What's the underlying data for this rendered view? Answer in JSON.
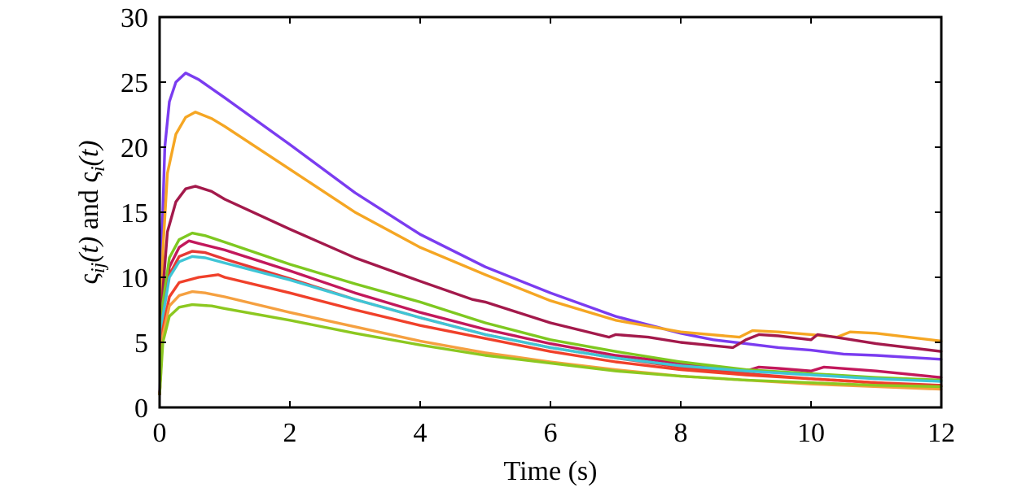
{
  "chart_data": {
    "type": "line",
    "xlabel": "Time (s)",
    "ylabel_parts": {
      "a": "ς",
      "a_sub": "ij",
      "a_arg": "(t)",
      "and": " and ",
      "b": "ς",
      "b_sub": "i",
      "b_arg": "(t)"
    },
    "xlim": [
      0,
      12
    ],
    "ylim": [
      0,
      30
    ],
    "xticks": [
      0,
      2,
      4,
      6,
      8,
      10,
      12
    ],
    "yticks": [
      0,
      5,
      10,
      15,
      20,
      25,
      30
    ],
    "grid": false,
    "series": [
      {
        "color": "#7a3cf0",
        "points": [
          [
            0,
            1
          ],
          [
            0.03,
            12
          ],
          [
            0.08,
            20
          ],
          [
            0.15,
            23.5
          ],
          [
            0.25,
            25
          ],
          [
            0.4,
            25.7
          ],
          [
            0.6,
            25.2
          ],
          [
            1,
            23.8
          ],
          [
            2,
            20.2
          ],
          [
            3,
            16.5
          ],
          [
            4,
            13.3
          ],
          [
            5,
            10.8
          ],
          [
            6,
            8.8
          ],
          [
            7,
            7
          ],
          [
            8,
            5.7
          ],
          [
            8.5,
            5.2
          ],
          [
            9,
            4.9
          ],
          [
            9.5,
            4.6
          ],
          [
            10,
            4.4
          ],
          [
            10.5,
            4.1
          ],
          [
            11,
            4
          ],
          [
            12,
            3.7
          ]
        ]
      },
      {
        "color": "#f5a623",
        "points": [
          [
            0,
            1
          ],
          [
            0.05,
            12
          ],
          [
            0.12,
            18
          ],
          [
            0.25,
            21
          ],
          [
            0.4,
            22.3
          ],
          [
            0.55,
            22.7
          ],
          [
            0.8,
            22.2
          ],
          [
            1,
            21.6
          ],
          [
            2,
            18.3
          ],
          [
            3,
            15
          ],
          [
            4,
            12.3
          ],
          [
            5,
            10.2
          ],
          [
            6,
            8.2
          ],
          [
            7,
            6.7
          ],
          [
            8,
            5.8
          ],
          [
            8.9,
            5.4
          ],
          [
            9.1,
            5.9
          ],
          [
            9.5,
            5.8
          ],
          [
            10,
            5.6
          ],
          [
            10.4,
            5.4
          ],
          [
            10.6,
            5.8
          ],
          [
            11,
            5.7
          ],
          [
            12,
            5.1
          ]
        ]
      },
      {
        "color": "#a3194b",
        "points": [
          [
            0,
            1
          ],
          [
            0.05,
            9
          ],
          [
            0.12,
            13.5
          ],
          [
            0.25,
            15.8
          ],
          [
            0.4,
            16.8
          ],
          [
            0.55,
            17
          ],
          [
            0.8,
            16.6
          ],
          [
            1,
            16
          ],
          [
            2,
            13.7
          ],
          [
            3,
            11.5
          ],
          [
            4,
            9.7
          ],
          [
            4.8,
            8.3
          ],
          [
            5,
            8.1
          ],
          [
            6,
            6.5
          ],
          [
            6.9,
            5.4
          ],
          [
            7,
            5.6
          ],
          [
            7.5,
            5.4
          ],
          [
            8,
            5
          ],
          [
            8.8,
            4.6
          ],
          [
            9,
            5.2
          ],
          [
            9.2,
            5.6
          ],
          [
            9.5,
            5.5
          ],
          [
            10,
            5.2
          ],
          [
            10.1,
            5.6
          ],
          [
            10.5,
            5.3
          ],
          [
            11,
            4.9
          ],
          [
            12,
            4.3
          ]
        ]
      },
      {
        "color": "#c2185b",
        "points": [
          [
            0,
            1
          ],
          [
            0.05,
            7.5
          ],
          [
            0.15,
            10.8
          ],
          [
            0.3,
            12.3
          ],
          [
            0.45,
            12.8
          ],
          [
            0.6,
            12.6
          ],
          [
            1,
            12.1
          ],
          [
            2,
            10.5
          ],
          [
            3,
            8.8
          ],
          [
            4,
            7.3
          ],
          [
            5,
            6
          ],
          [
            6,
            4.9
          ],
          [
            7,
            4
          ],
          [
            8,
            3.4
          ],
          [
            9,
            2.8
          ],
          [
            9.2,
            3.1
          ],
          [
            9.5,
            3
          ],
          [
            10,
            2.8
          ],
          [
            10.2,
            3.1
          ],
          [
            11,
            2.8
          ],
          [
            12,
            2.3
          ]
        ]
      },
      {
        "color": "#7ec820",
        "points": [
          [
            0,
            1
          ],
          [
            0.05,
            8
          ],
          [
            0.15,
            11.5
          ],
          [
            0.3,
            12.9
          ],
          [
            0.5,
            13.4
          ],
          [
            0.7,
            13.2
          ],
          [
            1,
            12.7
          ],
          [
            2,
            11
          ],
          [
            3,
            9.5
          ],
          [
            4,
            8.1
          ],
          [
            5,
            6.5
          ],
          [
            6,
            5.2
          ],
          [
            7,
            4.3
          ],
          [
            8,
            3.5
          ],
          [
            9,
            2.9
          ],
          [
            10,
            2.6
          ],
          [
            11,
            2.3
          ],
          [
            12,
            2.1
          ]
        ]
      },
      {
        "color": "#e53935",
        "points": [
          [
            0,
            1
          ],
          [
            0.05,
            7
          ],
          [
            0.15,
            10.2
          ],
          [
            0.3,
            11.6
          ],
          [
            0.5,
            12
          ],
          [
            0.7,
            11.9
          ],
          [
            1,
            11.4
          ],
          [
            2,
            9.9
          ],
          [
            3,
            8.3
          ],
          [
            4,
            6.9
          ],
          [
            5,
            5.6
          ],
          [
            6,
            4.6
          ],
          [
            7,
            3.8
          ],
          [
            8,
            3.1
          ],
          [
            9,
            2.6
          ],
          [
            10,
            2.2
          ],
          [
            11,
            1.9
          ],
          [
            12,
            1.7
          ]
        ]
      },
      {
        "color": "#3fc5d6",
        "points": [
          [
            0,
            1
          ],
          [
            0.05,
            7
          ],
          [
            0.15,
            10
          ],
          [
            0.3,
            11.2
          ],
          [
            0.5,
            11.6
          ],
          [
            0.7,
            11.5
          ],
          [
            1,
            11.1
          ],
          [
            2,
            9.8
          ],
          [
            3,
            8.3
          ],
          [
            4,
            6.9
          ],
          [
            5,
            5.6
          ],
          [
            6,
            4.6
          ],
          [
            7,
            3.8
          ],
          [
            8,
            3.2
          ],
          [
            9,
            2.8
          ],
          [
            10,
            2.5
          ],
          [
            11,
            2.2
          ],
          [
            12,
            2
          ]
        ]
      },
      {
        "color": "#f0402a",
        "points": [
          [
            0,
            1
          ],
          [
            0.05,
            6
          ],
          [
            0.15,
            8.5
          ],
          [
            0.3,
            9.6
          ],
          [
            0.6,
            10
          ],
          [
            0.9,
            10.2
          ],
          [
            1,
            10
          ],
          [
            2,
            8.8
          ],
          [
            3,
            7.5
          ],
          [
            4,
            6.3
          ],
          [
            5,
            5.3
          ],
          [
            6,
            4.3
          ],
          [
            7,
            3.5
          ],
          [
            8,
            2.9
          ],
          [
            9,
            2.5
          ],
          [
            10,
            2.2
          ],
          [
            11,
            1.9
          ],
          [
            12,
            1.6
          ]
        ]
      },
      {
        "color": "#f5a040",
        "points": [
          [
            0,
            1
          ],
          [
            0.05,
            5.5
          ],
          [
            0.15,
            7.8
          ],
          [
            0.3,
            8.6
          ],
          [
            0.5,
            8.9
          ],
          [
            0.7,
            8.8
          ],
          [
            1,
            8.5
          ],
          [
            2,
            7.3
          ],
          [
            3,
            6.2
          ],
          [
            4,
            5.1
          ],
          [
            5,
            4.2
          ],
          [
            6,
            3.5
          ],
          [
            7,
            2.9
          ],
          [
            8,
            2.4
          ],
          [
            9,
            2.1
          ],
          [
            10,
            1.8
          ],
          [
            11,
            1.6
          ],
          [
            12,
            1.4
          ]
        ]
      },
      {
        "color": "#8cc820",
        "points": [
          [
            0,
            1
          ],
          [
            0.05,
            5
          ],
          [
            0.15,
            7
          ],
          [
            0.3,
            7.7
          ],
          [
            0.5,
            7.9
          ],
          [
            0.8,
            7.8
          ],
          [
            1,
            7.6
          ],
          [
            2,
            6.7
          ],
          [
            3,
            5.7
          ],
          [
            4,
            4.8
          ],
          [
            5,
            4
          ],
          [
            6,
            3.4
          ],
          [
            7,
            2.8
          ],
          [
            8,
            2.4
          ],
          [
            9,
            2.1
          ],
          [
            10,
            1.9
          ],
          [
            11,
            1.7
          ],
          [
            12,
            1.6
          ]
        ]
      }
    ]
  }
}
